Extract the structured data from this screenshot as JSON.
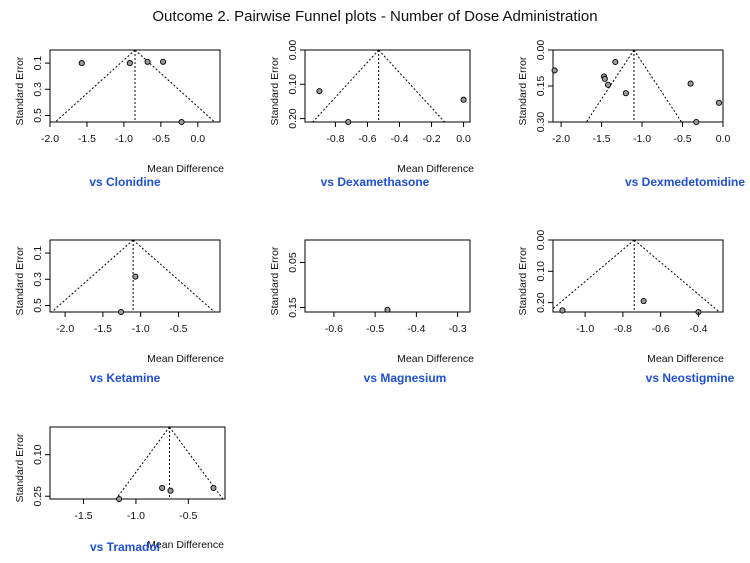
{
  "title": "Outcome 2. Pairwise Funnel plots - Number of Dose Administration",
  "caption_color": "#1f4fd8",
  "point_fill": "#9a9a9a",
  "chart_data": [
    {
      "type": "scatter",
      "caption": "vs Clonidine",
      "xlabel": "Mean Difference",
      "ylabel": "Standard Error",
      "xlim": [
        -2.0,
        0.3
      ],
      "ylim": [
        0.55,
        0.0
      ],
      "y_reversed": true,
      "xticks": [
        -2.0,
        -1.5,
        -1.0,
        -0.5,
        0.0
      ],
      "xtick_labels": [
        "-2.0",
        "-1.5",
        "-1.0",
        "-0.5",
        "0.0"
      ],
      "yticks": [
        0.1,
        0.3,
        0.5
      ],
      "ytick_labels": [
        "0.1",
        "0.3",
        "0.5"
      ],
      "funnel_center": -0.85,
      "funnel_max_se": 0.55,
      "points": [
        {
          "x": -1.57,
          "y": 0.1
        },
        {
          "x": -0.92,
          "y": 0.1
        },
        {
          "x": -0.68,
          "y": 0.09
        },
        {
          "x": -0.47,
          "y": 0.09
        },
        {
          "x": -0.22,
          "y": 0.55
        }
      ]
    },
    {
      "type": "scatter",
      "caption": "vs Dexamethasone",
      "xlabel": "Mean Difference",
      "ylabel": "Standard Error",
      "xlim": [
        -0.99,
        0.04
      ],
      "ylim": [
        0.21,
        0.0
      ],
      "y_reversed": true,
      "xticks": [
        -0.8,
        -0.6,
        -0.4,
        -0.2,
        0.0
      ],
      "xtick_labels": [
        "-0.8",
        "-0.6",
        "-0.4",
        "-0.2",
        "0.0"
      ],
      "yticks": [
        0.0,
        0.1,
        0.2
      ],
      "ytick_labels": [
        "0.00",
        "0.10",
        "0.20"
      ],
      "funnel_center": -0.53,
      "funnel_max_se": 0.21,
      "points": [
        {
          "x": -0.9,
          "y": 0.12
        },
        {
          "x": -0.72,
          "y": 0.21
        },
        {
          "x": 0.0,
          "y": 0.145
        }
      ]
    },
    {
      "type": "scatter",
      "caption": "vs Dexmedetomidine",
      "xlabel": "",
      "ylabel": "Standard Error",
      "xlim": [
        -2.1,
        0.0
      ],
      "ylim": [
        0.3,
        0.0
      ],
      "y_reversed": true,
      "xticks": [
        -2.0,
        -1.5,
        -1.0,
        -0.5,
        0.0
      ],
      "xtick_labels": [
        "-2.0",
        "-1.5",
        "-1.0",
        "-0.5",
        "0.0"
      ],
      "yticks": [
        0.0,
        0.15,
        0.3
      ],
      "ytick_labels": [
        "0.00",
        "0.15",
        "0.30"
      ],
      "funnel_center": -1.1,
      "funnel_max_se": 0.3,
      "points": [
        {
          "x": -2.08,
          "y": 0.085
        },
        {
          "x": -1.47,
          "y": 0.11
        },
        {
          "x": -1.46,
          "y": 0.12
        },
        {
          "x": -1.42,
          "y": 0.145
        },
        {
          "x": -1.33,
          "y": 0.05
        },
        {
          "x": -1.2,
          "y": 0.18
        },
        {
          "x": -0.4,
          "y": 0.14
        },
        {
          "x": -0.33,
          "y": 0.3
        },
        {
          "x": -0.05,
          "y": 0.22
        }
      ]
    },
    {
      "type": "scatter",
      "caption": "vs Ketamine",
      "xlabel": "Mean Difference",
      "ylabel": "Standard Error",
      "xlim": [
        -2.2,
        0.05
      ],
      "ylim": [
        0.55,
        0.0
      ],
      "y_reversed": true,
      "xticks": [
        -2.0,
        -1.5,
        -1.0,
        -0.5
      ],
      "xtick_labels": [
        "-2.0",
        "-1.5",
        "-1.0",
        "-0.5"
      ],
      "yticks": [
        0.1,
        0.3,
        0.5
      ],
      "ytick_labels": [
        "0.1",
        "0.3",
        "0.5"
      ],
      "funnel_center": -1.1,
      "funnel_max_se": 0.55,
      "points": [
        {
          "x": -1.26,
          "y": 0.55
        },
        {
          "x": -1.07,
          "y": 0.28
        }
      ]
    },
    {
      "type": "scatter",
      "caption": "vs Magnesium",
      "xlabel": "Mean Difference",
      "ylabel": "Standard Error",
      "xlim": [
        -0.67,
        -0.27
      ],
      "ylim": [
        0.16,
        0.0
      ],
      "y_reversed": true,
      "xticks": [
        -0.6,
        -0.5,
        -0.4,
        -0.3
      ],
      "xtick_labels": [
        "-0.6",
        "-0.5",
        "-0.4",
        "-0.3"
      ],
      "yticks": [
        0.05,
        0.15
      ],
      "ytick_labels": [
        "0.05",
        "0.15"
      ],
      "funnel_center": null,
      "funnel_max_se": null,
      "points": [
        {
          "x": -0.47,
          "y": 0.155
        }
      ]
    },
    {
      "type": "scatter",
      "caption": "vs Neostigmine",
      "xlabel": "Mean Difference",
      "ylabel": "Standard Error",
      "xlim": [
        -1.17,
        -0.27
      ],
      "ylim": [
        0.23,
        0.0
      ],
      "y_reversed": true,
      "xticks": [
        -1.0,
        -0.8,
        -0.6,
        -0.4
      ],
      "xtick_labels": [
        "-1.0",
        "-0.8",
        "-0.6",
        "-0.4"
      ],
      "yticks": [
        0.0,
        0.1,
        0.2
      ],
      "ytick_labels": [
        "0.00",
        "0.10",
        "0.20"
      ],
      "funnel_center": -0.74,
      "funnel_max_se": 0.23,
      "points": [
        {
          "x": -1.12,
          "y": 0.225
        },
        {
          "x": -0.69,
          "y": 0.195
        },
        {
          "x": -0.4,
          "y": 0.23
        }
      ]
    },
    {
      "type": "scatter",
      "caption": "vs Tramadol",
      "xlabel": "Mean Difference",
      "ylabel": "Standard Error",
      "xlim": [
        -1.82,
        -0.15
      ],
      "ylim": [
        0.26,
        0.0
      ],
      "y_reversed": true,
      "xticks": [
        -1.5,
        -1.0,
        -0.5
      ],
      "xtick_labels": [
        "-1.5",
        "-1.0",
        "-0.5"
      ],
      "yticks": [
        0.1,
        0.25
      ],
      "ytick_labels": [
        "0.10",
        "0.25"
      ],
      "funnel_center": -0.68,
      "funnel_max_se": 0.26,
      "points": [
        {
          "x": -1.16,
          "y": 0.26
        },
        {
          "x": -0.75,
          "y": 0.22
        },
        {
          "x": -0.67,
          "y": 0.23
        },
        {
          "x": -0.26,
          "y": 0.22
        }
      ]
    }
  ]
}
